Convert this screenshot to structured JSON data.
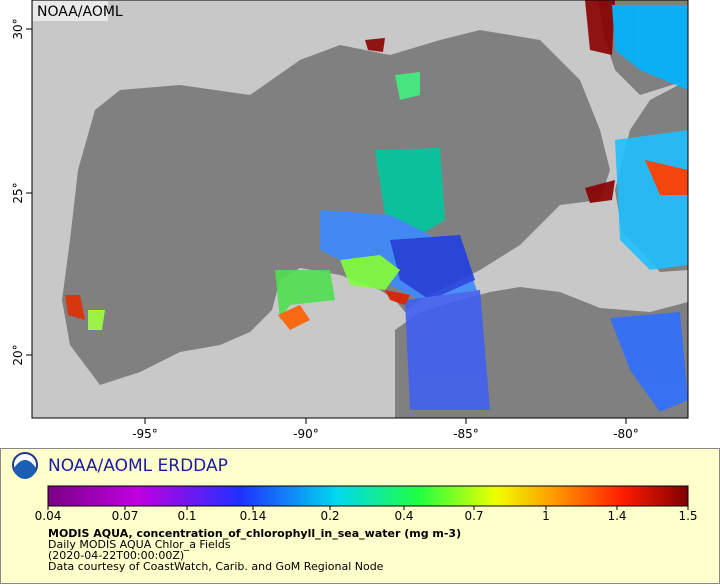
{
  "map": {
    "watermark": "NOAA/AOML",
    "x_axis_labels": [
      "-95°",
      "-90°",
      "-85°",
      "-80°"
    ],
    "y_axis_labels": [
      "20°",
      "25°",
      "30°"
    ]
  },
  "legend": {
    "title": "NOAA/AOML ERDDAP",
    "colorbar_labels": [
      "0.04",
      "0.07",
      "0.1",
      "0.14",
      "0.2",
      "0.4",
      "0.7",
      "1",
      "1.4",
      "1.5"
    ],
    "variable": "MODIS AQUA, concentration_of_chlorophyll_in_sea_water (mg m-3)",
    "dataset": "Daily MODIS AQUA Chlor_a Fields",
    "time": "(2020-04-22T00:00:00Z)",
    "credit": "Data courtesy of CoastWatch, Carib. and GoM Regional Node"
  }
}
